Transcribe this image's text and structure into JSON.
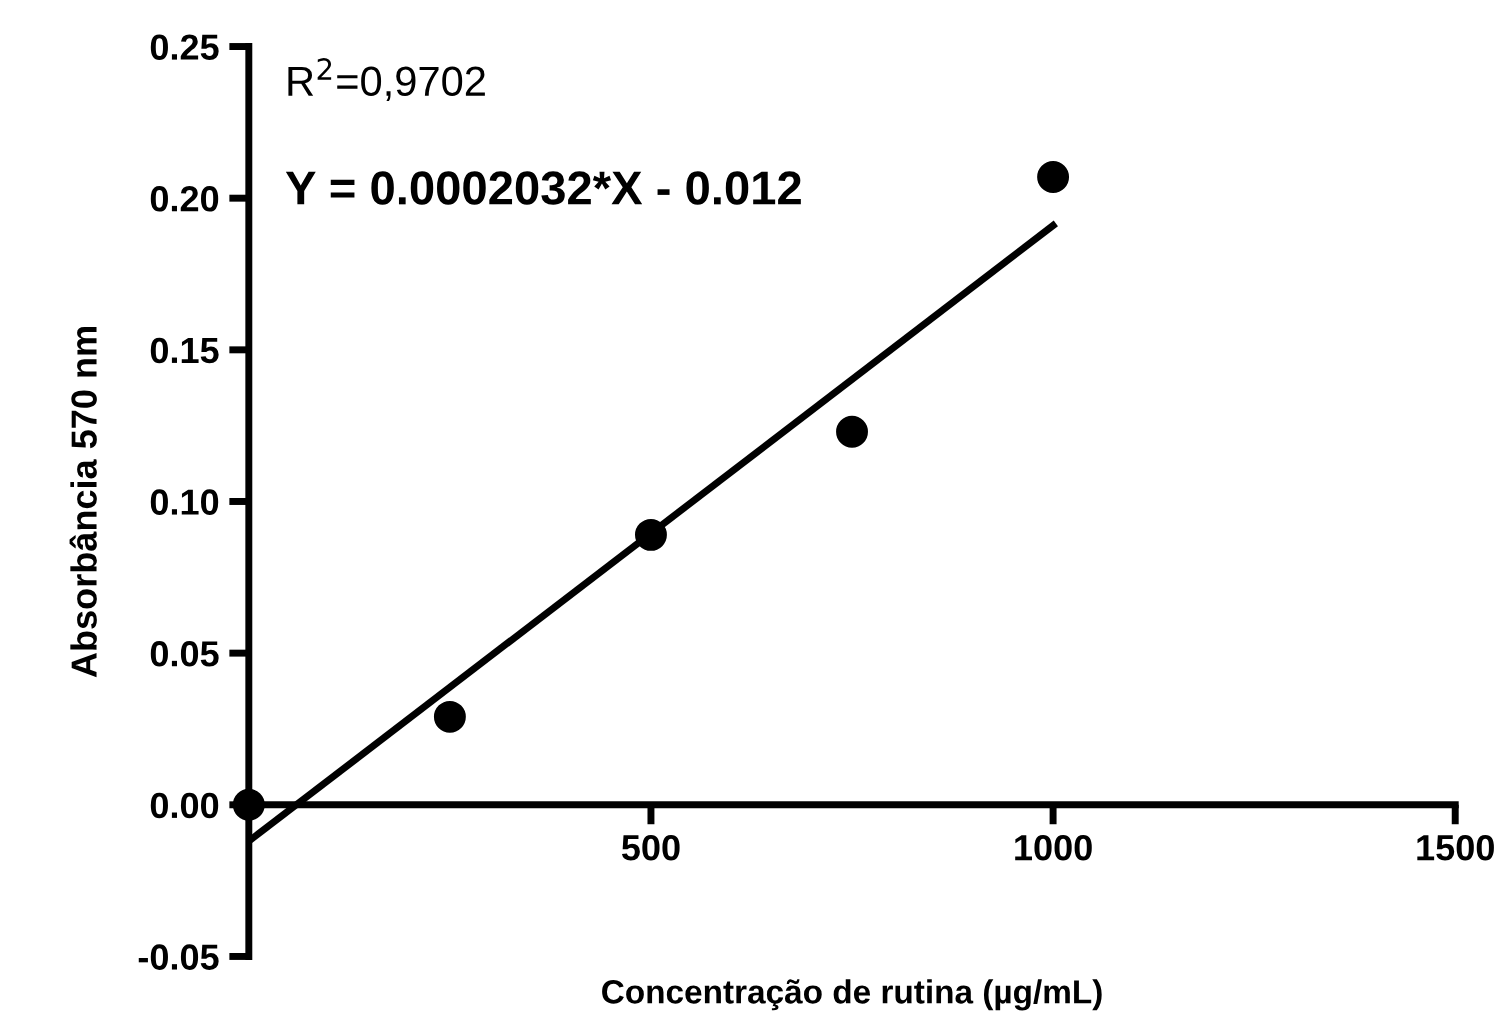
{
  "chart_data": {
    "type": "scatter",
    "xlabel": "Concentração de rutina (µg/mL)",
    "ylabel": "Absorbância 570 nm",
    "annotations": [
      "R$^{2}$=0,9702",
      "Y = 0.0002032*X - 0.012"
    ],
    "series": [
      {
        "color": "#000000",
        "x": [
          0,
          250,
          500,
          750,
          1000
        ],
        "values": [
          0.0,
          0.029,
          0.089,
          0.123,
          0.207
        ],
        "marker": "circle"
      },
      {
        "type": "line",
        "color": "#000000",
        "x": [
          0,
          1000
        ],
        "values": [
          -0.012,
          0.191
        ],
        "marker": "none",
        "line_style": "solid"
      }
    ],
    "xlim": [
      0,
      1500
    ],
    "xticks": [
      500,
      1000,
      1500
    ],
    "ylim": [
      -0.05,
      0.25
    ],
    "yticks": [
      {
        "value": -0.05,
        "label": "-0.05"
      },
      {
        "value": 0.0,
        "label": "0.00"
      },
      {
        "value": 0.05,
        "label": "0.05"
      },
      {
        "value": 0.1,
        "label": "0.10"
      },
      {
        "value": 0.15,
        "label": "0.15"
      },
      {
        "value": 0.2,
        "label": "0.20"
      },
      {
        "value": 0.25,
        "label": "0.25"
      }
    ],
    "grid": false,
    "legend": false
  }
}
